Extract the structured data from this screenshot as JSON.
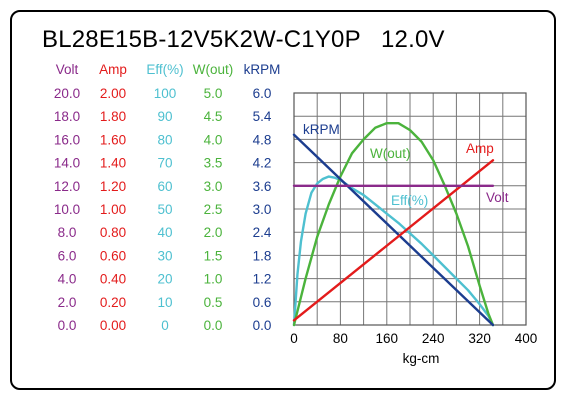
{
  "title": "BL28E15B-12V5K2W-C1Y0P   12.0V",
  "colors": {
    "volt": "#8a2a8a",
    "amp": "#e31b1b",
    "eff": "#4ec0d0",
    "wout": "#4bb33c",
    "krpm": "#1c3d8f"
  },
  "chart_data": {
    "type": "line",
    "xlabel": "kg-cm",
    "x_ticks": [
      "0",
      "80",
      "160",
      "240",
      "320",
      "400"
    ],
    "xlim": [
      0,
      400
    ],
    "scales": [
      {
        "key": "volt",
        "header": "Volt",
        "ticks": [
          "20.0",
          "18.0",
          "16.0",
          "14.0",
          "12.0",
          "10.0",
          "8.0",
          "6.0",
          "4.0",
          "2.0",
          "0.0"
        ],
        "max": 20
      },
      {
        "key": "amp",
        "header": "Amp",
        "ticks": [
          "2.00",
          "1.80",
          "1.60",
          "1.40",
          "1.20",
          "1.00",
          "0.80",
          "0.60",
          "0.40",
          "0.20",
          "0.00"
        ],
        "max": 2
      },
      {
        "key": "eff",
        "header": "Eff(%)",
        "ticks": [
          "100",
          "90",
          "80",
          "70",
          "60",
          "50",
          "40",
          "30",
          "20",
          "10",
          "0"
        ],
        "max": 100
      },
      {
        "key": "wout",
        "header": "W(out)",
        "ticks": [
          "5.0",
          "4.5",
          "4.0",
          "3.5",
          "3.0",
          "2.5",
          "2.0",
          "1.5",
          "1.0",
          "0.5",
          "0.0"
        ],
        "max": 5
      },
      {
        "key": "krpm",
        "header": "kRPM",
        "ticks": [
          "6.0",
          "5.4",
          "4.8",
          "4.2",
          "3.6",
          "3.0",
          "2.4",
          "1.8",
          "1.2",
          "0.6",
          "0.0"
        ],
        "max": 6
      }
    ],
    "series": [
      {
        "name": "Volt",
        "key": "volt",
        "x": [
          0,
          343
        ],
        "values": [
          12.0,
          12.0
        ]
      },
      {
        "name": "Amp",
        "key": "amp",
        "x": [
          0,
          343
        ],
        "values": [
          0.04,
          1.42
        ]
      },
      {
        "name": "Eff(%)",
        "key": "eff",
        "x": [
          0,
          6,
          12,
          20,
          30,
          40,
          50,
          60,
          70,
          80,
          100,
          120,
          140,
          160,
          180,
          200,
          220,
          240,
          260,
          280,
          300,
          320,
          335,
          343
        ],
        "values": [
          0,
          22,
          36,
          48,
          57,
          61,
          63,
          64,
          63.5,
          62.5,
          59,
          56,
          52,
          48,
          44,
          39.5,
          35,
          30,
          25,
          20,
          15,
          9,
          4,
          0
        ]
      },
      {
        "name": "W(out)",
        "key": "wout",
        "x": [
          0,
          20,
          40,
          60,
          80,
          100,
          120,
          140,
          160,
          180,
          200,
          220,
          240,
          260,
          280,
          300,
          320,
          335,
          343
        ],
        "values": [
          0,
          1.0,
          1.9,
          2.6,
          3.2,
          3.7,
          4.0,
          4.25,
          4.35,
          4.35,
          4.2,
          3.95,
          3.55,
          3.0,
          2.4,
          1.7,
          0.85,
          0.25,
          0
        ]
      },
      {
        "name": "kRPM",
        "key": "krpm",
        "x": [
          0,
          343
        ],
        "values": [
          4.92,
          0
        ]
      }
    ],
    "grid": true
  }
}
